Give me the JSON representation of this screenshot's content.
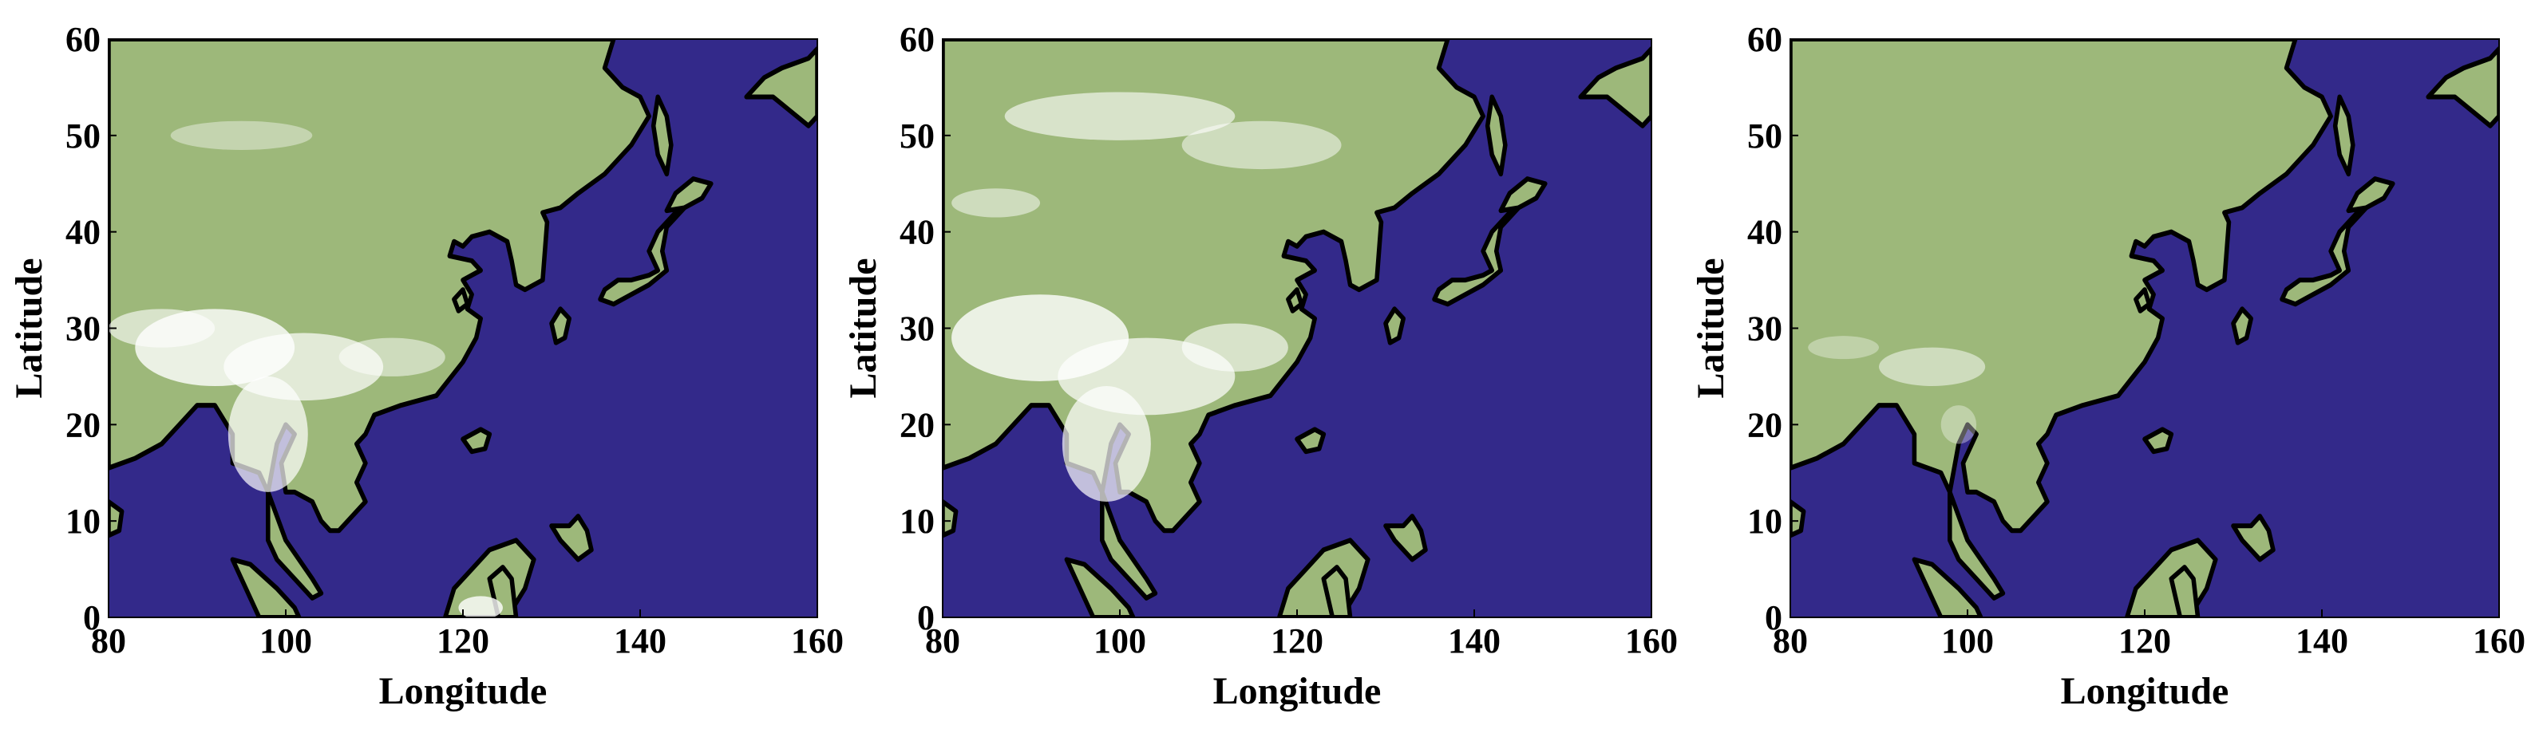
{
  "chart_data": [
    {
      "type": "map",
      "xlabel": "Longitude",
      "ylabel": "Latitude",
      "xlim": [
        80,
        160
      ],
      "ylim": [
        0,
        60
      ],
      "xticks": [
        80,
        100,
        120,
        140,
        160
      ],
      "yticks": [
        0,
        10,
        20,
        30,
        40,
        50,
        60
      ],
      "ocean_color": "#33298a",
      "land_color": "#9db87a"
    },
    {
      "type": "map",
      "xlabel": "Longitude",
      "ylabel": "Latitude",
      "xlim": [
        80,
        160
      ],
      "ylim": [
        0,
        60
      ],
      "xticks": [
        80,
        100,
        120,
        140,
        160
      ],
      "yticks": [
        0,
        10,
        20,
        30,
        40,
        50,
        60
      ],
      "ocean_color": "#33298a",
      "land_color": "#9db87a"
    },
    {
      "type": "map",
      "xlabel": "Longitude",
      "ylabel": "Latitude",
      "xlim": [
        80,
        160
      ],
      "ylim": [
        0,
        60
      ],
      "xticks": [
        80,
        100,
        120,
        140,
        160
      ],
      "yticks": [
        0,
        10,
        20,
        30,
        40,
        50,
        60
      ],
      "ocean_color": "#33298a",
      "land_color": "#9db87a"
    }
  ]
}
